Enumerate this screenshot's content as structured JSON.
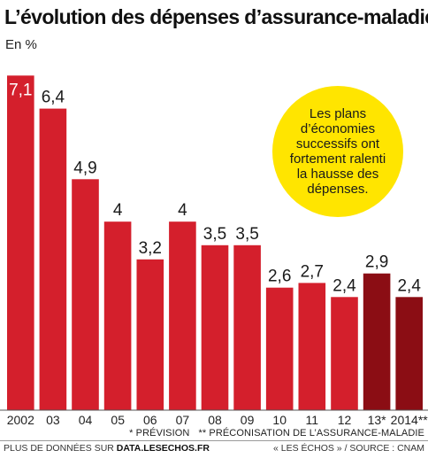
{
  "title": "L’évolution des dépenses d’assurance-maladie",
  "unit_label": "En %",
  "callout": "Les plans d’économies successifs ont fortement ralenti la hausse des dépenses.",
  "chart_data": {
    "type": "bar",
    "categories": [
      "2002",
      "03",
      "04",
      "05",
      "06",
      "07",
      "08",
      "09",
      "10",
      "11",
      "12",
      "13*",
      "2014**"
    ],
    "values": [
      7.1,
      6.4,
      4.9,
      4,
      3.2,
      4,
      3.5,
      3.5,
      2.6,
      2.7,
      2.4,
      2.9,
      2.4
    ],
    "value_labels": [
      "7,1",
      "6,4",
      "4,9",
      "4",
      "3,2",
      "4",
      "3,5",
      "3,5",
      "2,6",
      "2,7",
      "2,4",
      "2,9",
      "2,4"
    ],
    "ylim": [
      0,
      7.2
    ],
    "grid": false,
    "colors": {
      "actual": "#d41f2c",
      "projection": "#8b0d14",
      "background": "#ffffff"
    }
  },
  "footnotes": {
    "prevision": "* PRÉVISION",
    "preconisation": "** PRÉCONISATION DE L’ASSURANCE-MALADIE"
  },
  "footer": {
    "left_prefix": "PLUS DE DONNÉES SUR ",
    "left_link": "DATA.LESECHOS.FR",
    "right": "« LES ÉCHOS » / SOURCE : CNAM"
  }
}
